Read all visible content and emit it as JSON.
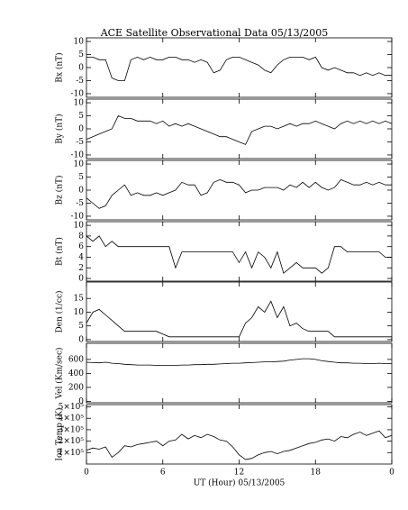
{
  "title": "ACE Satellite Observational Data   05/13/2005",
  "chart_data": [
    {
      "type": "line",
      "ylabel": "Bx (nT)",
      "color": "#000000",
      "ylim": [
        -11.4,
        11.4
      ],
      "yticks": [
        -10,
        -5,
        0,
        5,
        10
      ],
      "x": [
        0,
        0.5,
        1,
        1.5,
        2,
        2.5,
        3,
        3.5,
        4,
        4.5,
        5,
        5.5,
        6,
        6.5,
        7,
        7.5,
        8,
        8.5,
        9,
        9.5,
        10,
        10.5,
        11,
        11.5,
        12,
        12.5,
        13,
        13.5,
        14,
        14.5,
        15,
        15.5,
        16,
        16.5,
        17,
        17.5,
        18,
        18.5,
        19,
        19.5,
        20,
        20.5,
        21,
        21.5,
        22,
        22.5,
        23,
        23.5,
        24
      ],
      "values": [
        4,
        4,
        3,
        3,
        -4,
        -5,
        -5,
        3,
        4,
        3,
        4,
        3,
        3,
        4,
        4,
        3,
        3,
        2,
        3,
        2,
        -2,
        -1,
        3,
        4,
        4,
        3,
        2,
        1,
        -1,
        -2,
        1,
        3,
        4,
        4,
        4,
        3,
        4,
        0,
        -1,
        0,
        -1,
        -2,
        -2,
        -3,
        -2,
        -3,
        -2,
        -3,
        -3
      ]
    },
    {
      "type": "line",
      "ylabel": "By (nT)",
      "color": "#000000",
      "ylim": [
        -11.4,
        11.4
      ],
      "yticks": [
        -10,
        -5,
        0,
        5,
        10
      ],
      "x": [
        0,
        0.5,
        1,
        1.5,
        2,
        2.5,
        3,
        3.5,
        4,
        4.5,
        5,
        5.5,
        6,
        6.5,
        7,
        7.5,
        8,
        8.5,
        9,
        9.5,
        10,
        10.5,
        11,
        11.5,
        12,
        12.5,
        13,
        13.5,
        14,
        14.5,
        15,
        15.5,
        16,
        16.5,
        17,
        17.5,
        18,
        18.5,
        19,
        19.5,
        20,
        20.5,
        21,
        21.5,
        22,
        22.5,
        23,
        23.5,
        24
      ],
      "values": [
        -4,
        -3,
        -2,
        -1,
        0,
        5,
        4,
        4,
        3,
        3,
        3,
        2,
        3,
        1,
        2,
        1,
        2,
        1,
        0,
        -1,
        -2,
        -3,
        -3,
        -4,
        -5,
        -6,
        -1,
        0,
        1,
        1,
        0,
        1,
        2,
        1,
        2,
        2,
        3,
        2,
        1,
        0,
        2,
        3,
        2,
        3,
        2,
        3,
        2,
        3,
        2
      ]
    },
    {
      "type": "line",
      "ylabel": "Bz (nT)",
      "color": "#000000",
      "ylim": [
        -11.4,
        11.4
      ],
      "yticks": [
        -10,
        -5,
        0,
        5,
        10
      ],
      "x": [
        0,
        0.5,
        1,
        1.5,
        2,
        2.5,
        3,
        3.5,
        4,
        4.5,
        5,
        5.5,
        6,
        6.5,
        7,
        7.5,
        8,
        8.5,
        9,
        9.5,
        10,
        10.5,
        11,
        11.5,
        12,
        12.5,
        13,
        13.5,
        14,
        14.5,
        15,
        15.5,
        16,
        16.5,
        17,
        17.5,
        18,
        18.5,
        19,
        19.5,
        20,
        20.5,
        21,
        21.5,
        22,
        22.5,
        23,
        23.5,
        24
      ],
      "values": [
        -3,
        -5,
        -7,
        -6,
        -2,
        0,
        2,
        -2,
        -1,
        -2,
        -2,
        -1,
        -2,
        -1,
        0,
        3,
        2,
        2,
        -2,
        -1,
        3,
        4,
        3,
        3,
        2,
        -1,
        0,
        0,
        1,
        1,
        1,
        0,
        2,
        1,
        3,
        1,
        3,
        1,
        0,
        1,
        4,
        3,
        2,
        2,
        3,
        2,
        3,
        2,
        2
      ]
    },
    {
      "type": "line",
      "ylabel": "Bt (nT)",
      "color": "#000000",
      "ylim": [
        -0.5,
        10.7
      ],
      "yticks": [
        0,
        2,
        4,
        6,
        8,
        10
      ],
      "x": [
        0,
        0.5,
        1,
        1.5,
        2,
        2.5,
        3,
        3.5,
        4,
        4.5,
        5,
        5.5,
        6,
        6.5,
        7,
        7.5,
        8,
        8.5,
        9,
        9.5,
        10,
        10.5,
        11,
        11.5,
        12,
        12.5,
        13,
        13.5,
        14,
        14.5,
        15,
        15.5,
        16,
        16.5,
        17,
        17.5,
        18,
        18.5,
        19,
        19.5,
        20,
        20.5,
        21,
        21.5,
        22,
        22.5,
        23,
        23.5,
        24
      ],
      "values": [
        8,
        7,
        8,
        6,
        7,
        6,
        6,
        6,
        6,
        6,
        6,
        6,
        6,
        6,
        2,
        5,
        5,
        5,
        5,
        5,
        5,
        5,
        5,
        5,
        3,
        5,
        2,
        5,
        4,
        2,
        5,
        1,
        2,
        3,
        2,
        2,
        2,
        1,
        2,
        6,
        6,
        5,
        5,
        5,
        5,
        5,
        5,
        4,
        4
      ]
    },
    {
      "type": "line",
      "ylabel": "Den (1/cc)",
      "color": "#000000",
      "ylim": [
        -0.7,
        21
      ],
      "yticks": [
        0,
        5,
        10,
        15
      ],
      "x": [
        0,
        0.5,
        1,
        1.5,
        2,
        2.5,
        3,
        3.5,
        4,
        4.5,
        5,
        5.5,
        6,
        6.5,
        7,
        7.5,
        8,
        8.5,
        9,
        9.5,
        10,
        10.5,
        11,
        11.5,
        12,
        12.5,
        13,
        13.5,
        14,
        14.5,
        15,
        15.5,
        16,
        16.5,
        17,
        17.5,
        18,
        18.5,
        19,
        19.5,
        20,
        20.5,
        21,
        21.5,
        22,
        22.5,
        23,
        23.5,
        24
      ],
      "values": [
        6,
        10,
        11,
        9,
        7,
        5,
        3,
        3,
        3,
        3,
        3,
        3,
        2,
        1,
        1,
        1,
        1,
        1,
        1,
        1,
        1,
        1,
        1,
        1,
        1,
        6,
        8,
        12,
        10,
        14,
        8,
        12,
        5,
        6,
        4,
        3,
        3,
        3,
        3,
        1,
        1,
        1,
        1,
        1,
        1,
        1,
        1,
        1,
        1
      ]
    },
    {
      "type": "line",
      "ylabel": "Vel (Km/sec)",
      "color": "#000000",
      "ylim": [
        -20,
        830
      ],
      "yticks": [
        0,
        200,
        400,
        600
      ],
      "x": [
        0,
        0.5,
        1,
        1.5,
        2,
        2.5,
        3,
        3.5,
        4,
        4.5,
        5,
        5.5,
        6,
        6.5,
        7,
        7.5,
        8,
        8.5,
        9,
        9.5,
        10,
        10.5,
        11,
        11.5,
        12,
        12.5,
        13,
        13.5,
        14,
        14.5,
        15,
        15.5,
        16,
        16.5,
        17,
        17.5,
        18,
        18.5,
        19,
        19.5,
        20,
        20.5,
        21,
        21.5,
        22,
        22.5,
        23,
        23.5,
        24
      ],
      "values": [
        560,
        555,
        550,
        560,
        545,
        540,
        530,
        525,
        520,
        520,
        520,
        515,
        515,
        515,
        515,
        520,
        520,
        525,
        525,
        530,
        530,
        535,
        540,
        545,
        545,
        550,
        555,
        560,
        565,
        565,
        570,
        575,
        590,
        600,
        610,
        610,
        600,
        580,
        570,
        560,
        550,
        550,
        545,
        545,
        540,
        540,
        545,
        540,
        540
      ]
    },
    {
      "type": "line",
      "ylabel": "Ion Temp (K)",
      "color": "#000000",
      "ylim": [
        0,
        520000
      ],
      "yticks": [
        {
          "value": 100000,
          "label": "1×10⁵"
        },
        {
          "value": 200000,
          "label": "2×10⁵"
        },
        {
          "value": 300000,
          "label": "3×10⁵"
        },
        {
          "value": 400000,
          "label": "4×10⁵"
        },
        {
          "value": 500000,
          "label": "5×10⁵"
        }
      ],
      "x": [
        0,
        0.5,
        1,
        1.5,
        2,
        2.5,
        3,
        3.5,
        4,
        4.5,
        5,
        5.5,
        6,
        6.5,
        7,
        7.5,
        8,
        8.5,
        9,
        9.5,
        10,
        10.5,
        11,
        11.5,
        12,
        12.5,
        13,
        13.5,
        14,
        14.5,
        15,
        15.5,
        16,
        16.5,
        17,
        17.5,
        18,
        18.5,
        19,
        19.5,
        20,
        20.5,
        21,
        21.5,
        22,
        22.5,
        23,
        23.5,
        24
      ],
      "values": [
        120000,
        140000,
        130000,
        150000,
        60000,
        100000,
        160000,
        150000,
        170000,
        180000,
        190000,
        200000,
        160000,
        200000,
        210000,
        260000,
        220000,
        250000,
        230000,
        260000,
        240000,
        210000,
        200000,
        150000,
        80000,
        40000,
        50000,
        80000,
        100000,
        110000,
        90000,
        110000,
        120000,
        140000,
        160000,
        180000,
        190000,
        210000,
        220000,
        200000,
        240000,
        230000,
        260000,
        280000,
        250000,
        270000,
        290000,
        230000,
        250000
      ],
      "xlabel": "UT (Hour)  05/13/2005",
      "xlim": [
        0,
        24
      ],
      "xticks": [
        0,
        6,
        12,
        18,
        {
          "value": 24,
          "label": "0"
        }
      ]
    }
  ]
}
